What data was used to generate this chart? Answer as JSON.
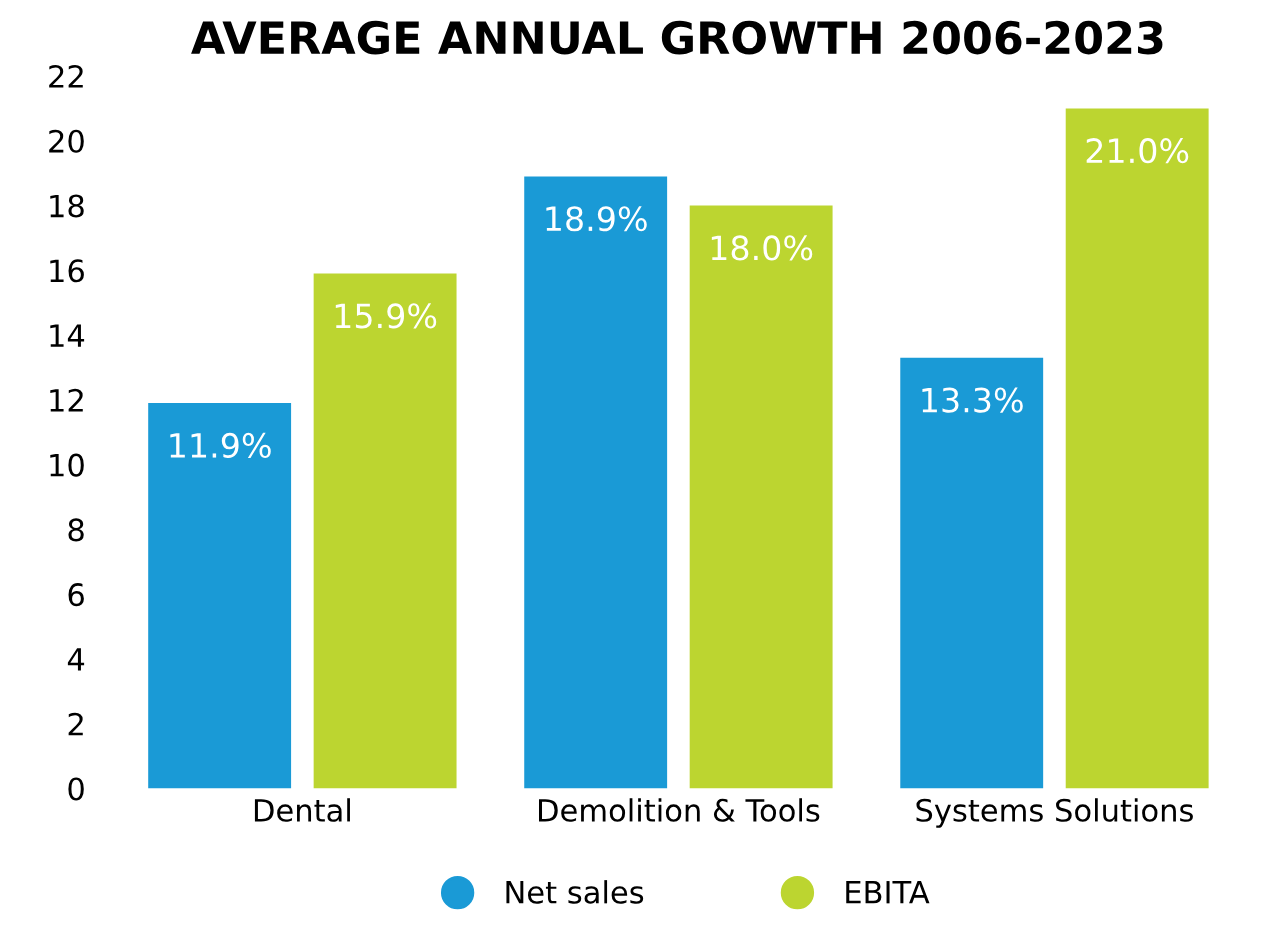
{
  "chart_data": {
    "type": "bar",
    "title": "AVERAGE ANNUAL GROWTH 2006-2023",
    "categories": [
      "Dental",
      "Demolition & Tools",
      "Systems Solutions"
    ],
    "series": [
      {
        "name": "Net sales",
        "color": "#1a9ad6",
        "values": [
          11.9,
          18.9,
          13.3
        ],
        "value_labels": [
          "11.9%",
          "18.9%",
          "13.3%"
        ]
      },
      {
        "name": "EBITA",
        "color": "#bcd530",
        "values": [
          15.9,
          18.0,
          21.0
        ],
        "value_labels": [
          "15.9%",
          "18.0%",
          "21.0%"
        ]
      }
    ],
    "ylim": [
      0,
      22
    ],
    "yticks": [
      0,
      2,
      4,
      6,
      8,
      10,
      12,
      14,
      16,
      18,
      20,
      22
    ],
    "grid": false,
    "legend": "bottom"
  }
}
